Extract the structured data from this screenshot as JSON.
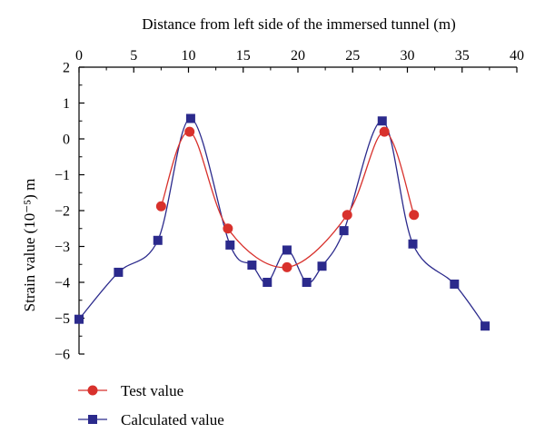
{
  "chart_data": {
    "type": "line",
    "title": "",
    "xlabel": "Distance from left side of the immersed tunnel (m)",
    "ylabel": "Strain value (10⁻⁵) m",
    "xlim": [
      0,
      40
    ],
    "ylim": [
      -6,
      2
    ],
    "xticks": [
      "0",
      "5",
      "10",
      "15",
      "20",
      "25",
      "30",
      "35",
      "40"
    ],
    "yticks": [
      "2",
      "1",
      "0",
      "−1",
      "−2",
      "−3",
      "−4",
      "−5",
      "−6"
    ],
    "grid": false,
    "legend_position": "bottom-left",
    "series": [
      {
        "name": "Test value",
        "marker": "circle",
        "color": "#d8312c",
        "points": [
          {
            "x": 7.5,
            "y": -1.88
          },
          {
            "x": 10.1,
            "y": 0.2
          },
          {
            "x": 13.6,
            "y": -2.5
          },
          {
            "x": 19.0,
            "y": -3.58
          },
          {
            "x": 24.5,
            "y": -2.12
          },
          {
            "x": 27.9,
            "y": 0.2
          },
          {
            "x": 30.6,
            "y": -2.12
          }
        ]
      },
      {
        "name": "Calculated value",
        "marker": "square",
        "color": "#2b2a8c",
        "points": [
          {
            "x": 0,
            "y": -5.03
          },
          {
            "x": 3.6,
            "y": -3.72
          },
          {
            "x": 7.2,
            "y": -2.83
          },
          {
            "x": 10.2,
            "y": 0.57
          },
          {
            "x": 13.8,
            "y": -2.96
          },
          {
            "x": 15.8,
            "y": -3.52
          },
          {
            "x": 17.2,
            "y": -4.0
          },
          {
            "x": 19.0,
            "y": -3.1
          },
          {
            "x": 20.8,
            "y": -4.0
          },
          {
            "x": 22.2,
            "y": -3.55
          },
          {
            "x": 24.2,
            "y": -2.56
          },
          {
            "x": 27.7,
            "y": 0.5
          },
          {
            "x": 30.5,
            "y": -2.93
          },
          {
            "x": 34.3,
            "y": -4.05
          },
          {
            "x": 37.1,
            "y": -5.22
          }
        ]
      }
    ]
  }
}
